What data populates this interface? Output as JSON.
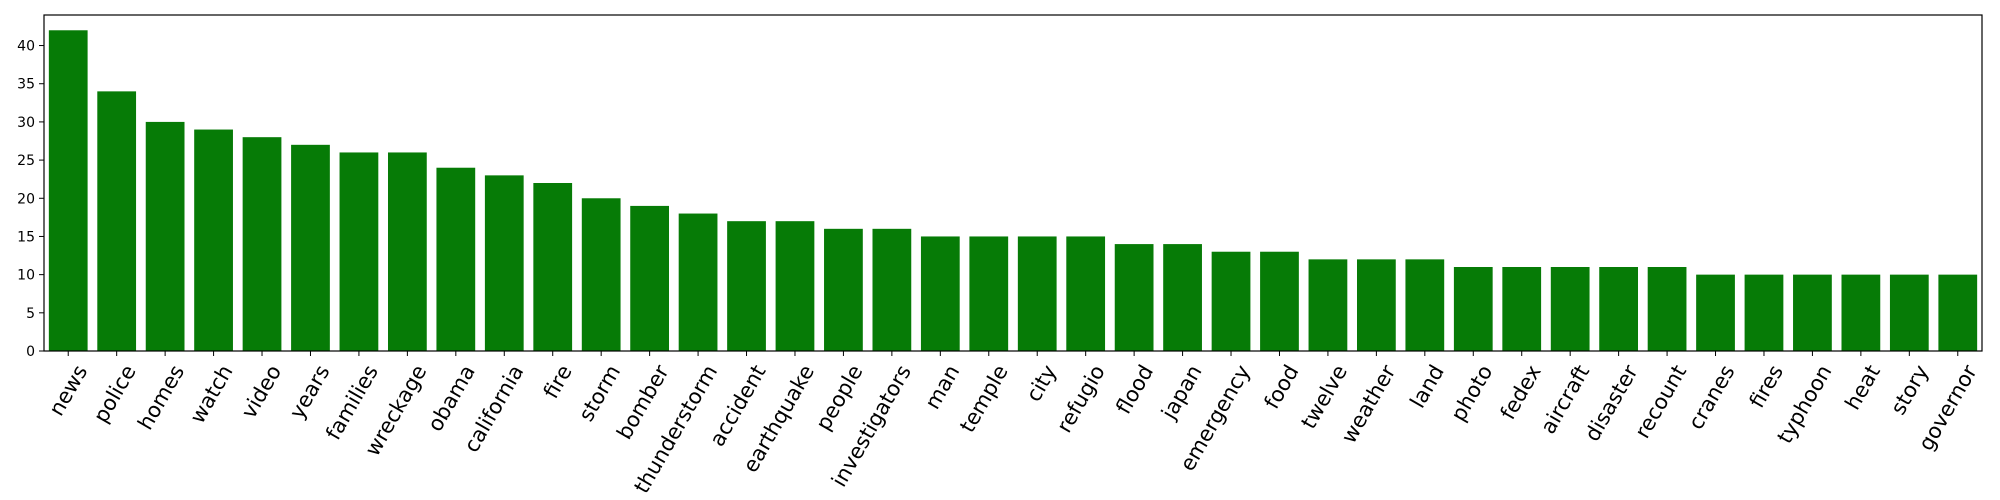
{
  "chart_data": {
    "type": "bar",
    "title": "",
    "xlabel": "",
    "ylabel": "",
    "ylim": [
      0,
      44
    ],
    "yticks": [
      0,
      5,
      10,
      15,
      20,
      25,
      30,
      35,
      40
    ],
    "grid": false,
    "legend": "none",
    "bar_color": "#067b06",
    "categories": [
      "news",
      "police",
      "homes",
      "watch",
      "video",
      "years",
      "families",
      "wreckage",
      "obama",
      "california",
      "fire",
      "storm",
      "bomber",
      "thunderstorm",
      "accident",
      "earthquake",
      "people",
      "investigators",
      "man",
      "temple",
      "city",
      "refugio",
      "flood",
      "japan",
      "emergency",
      "food",
      "twelve",
      "weather",
      "land",
      "photo",
      "fedex",
      "aircraft",
      "disaster",
      "recount",
      "cranes",
      "fires",
      "typhoon",
      "heat",
      "story",
      "governor"
    ],
    "values": [
      42,
      34,
      30,
      29,
      28,
      27,
      26,
      26,
      24,
      23,
      22,
      20,
      19,
      18,
      17,
      17,
      16,
      16,
      15,
      15,
      15,
      15,
      14,
      14,
      13,
      13,
      12,
      12,
      12,
      11,
      11,
      11,
      11,
      11,
      10,
      10,
      10,
      10,
      10,
      10
    ]
  }
}
